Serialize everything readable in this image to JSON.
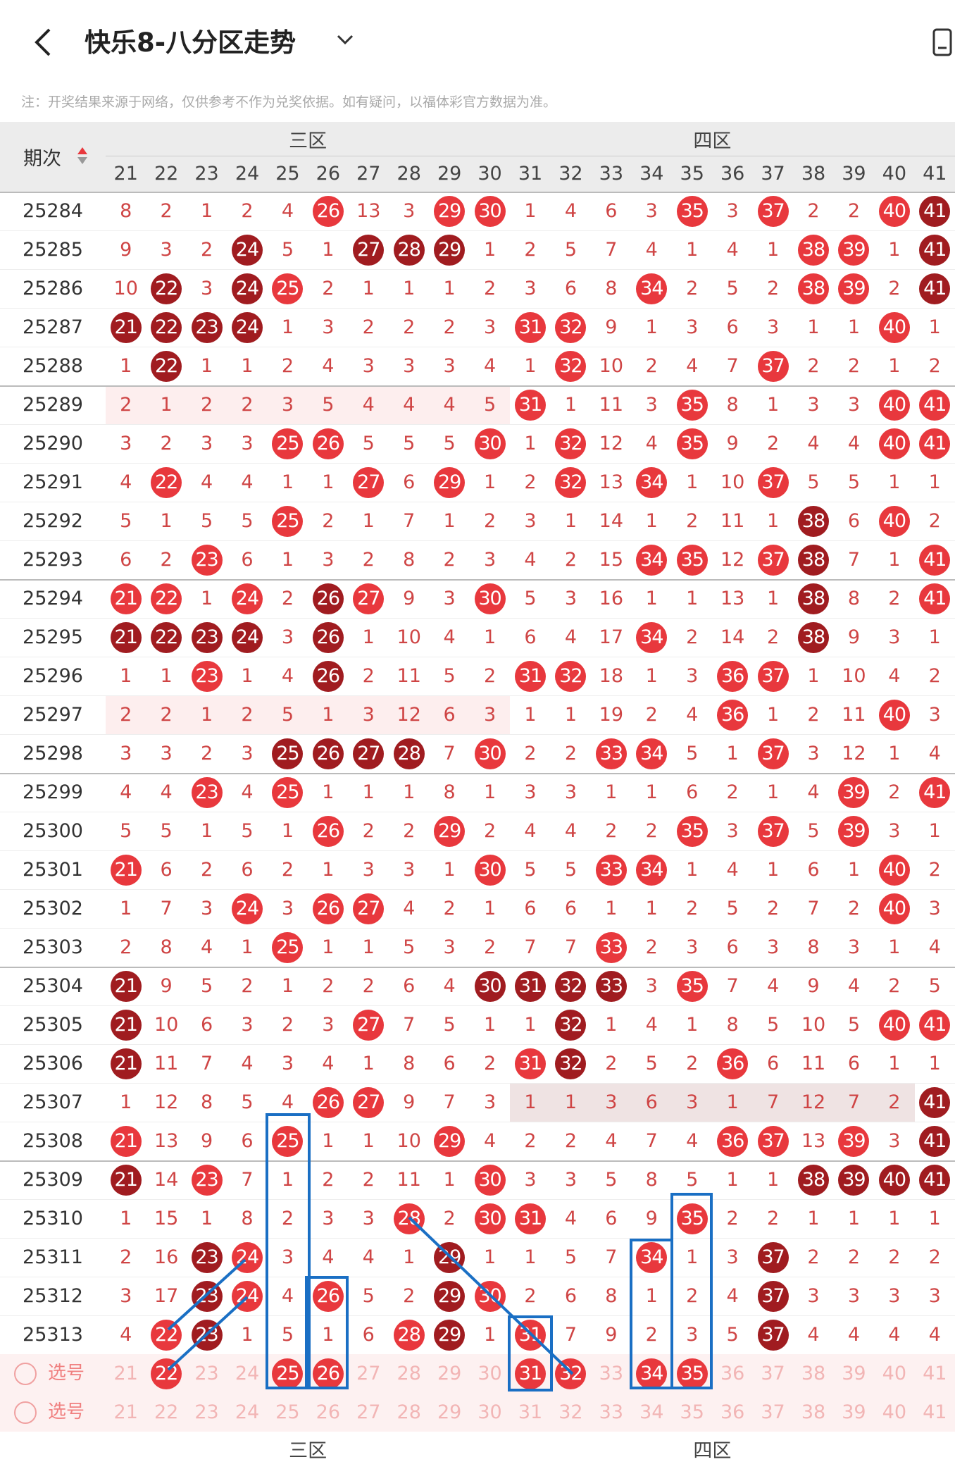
{
  "header": {
    "title": "快乐8-八分区走势",
    "note": "注：开奖结果来源于网络，仅供参考不作为兑奖依据。如有疑问，以福体彩官方数据为准。"
  },
  "table": {
    "period_header": "期次",
    "zones": [
      "三区",
      "四区"
    ],
    "columns": [
      21,
      22,
      23,
      24,
      25,
      26,
      27,
      28,
      29,
      30,
      31,
      32,
      33,
      34,
      35,
      36,
      37,
      38,
      39,
      40,
      41
    ],
    "rows": [
      {
        "period": "25284",
        "cells": [
          8,
          2,
          1,
          2,
          4,
          26,
          13,
          3,
          29,
          30,
          1,
          4,
          6,
          3,
          35,
          3,
          37,
          2,
          2,
          40,
          41
        ],
        "balls": ".....r..rr....r.r..rd"
      },
      {
        "period": "25285",
        "cells": [
          9,
          3,
          2,
          24,
          5,
          1,
          27,
          28,
          29,
          1,
          2,
          5,
          7,
          4,
          1,
          4,
          1,
          38,
          39,
          1,
          41
        ],
        "balls": "...d..ddd........rr.d"
      },
      {
        "period": "25286",
        "cells": [
          10,
          22,
          3,
          24,
          25,
          2,
          1,
          1,
          1,
          2,
          3,
          6,
          8,
          34,
          2,
          5,
          2,
          38,
          39,
          2,
          41
        ],
        "balls": ".d.dr........r...rr.d"
      },
      {
        "period": "25287",
        "cells": [
          21,
          22,
          23,
          24,
          1,
          3,
          2,
          2,
          2,
          3,
          31,
          32,
          9,
          1,
          3,
          6,
          3,
          1,
          1,
          40,
          1
        ],
        "balls": "dddd......rr.......r."
      },
      {
        "period": "25288",
        "cells": [
          1,
          22,
          1,
          1,
          2,
          4,
          3,
          3,
          3,
          4,
          1,
          32,
          10,
          2,
          4,
          7,
          37,
          2,
          2,
          1,
          2
        ],
        "balls": ".d.........r....r...."
      },
      {
        "period": "25289",
        "cells": [
          2,
          1,
          2,
          2,
          3,
          5,
          4,
          4,
          4,
          5,
          31,
          1,
          11,
          3,
          35,
          8,
          1,
          3,
          3,
          40,
          41
        ],
        "balls": "..........r...r....rr",
        "highlight": "left"
      },
      {
        "period": "25290",
        "cells": [
          3,
          2,
          3,
          3,
          25,
          26,
          5,
          5,
          5,
          30,
          1,
          32,
          12,
          4,
          35,
          9,
          2,
          4,
          4,
          40,
          41
        ],
        "balls": "....rr...r.r..r....rr"
      },
      {
        "period": "25291",
        "cells": [
          4,
          22,
          4,
          4,
          1,
          1,
          27,
          6,
          29,
          1,
          2,
          32,
          13,
          34,
          1,
          10,
          37,
          5,
          5,
          1,
          1
        ],
        "balls": ".r....r.r..r.r..r...."
      },
      {
        "period": "25292",
        "cells": [
          5,
          1,
          5,
          5,
          25,
          2,
          1,
          7,
          1,
          2,
          3,
          1,
          14,
          1,
          2,
          11,
          1,
          38,
          6,
          40,
          2
        ],
        "balls": "....r............d.r."
      },
      {
        "period": "25293",
        "cells": [
          6,
          2,
          23,
          6,
          1,
          3,
          2,
          8,
          2,
          3,
          4,
          2,
          15,
          34,
          35,
          12,
          37,
          38,
          7,
          1,
          41
        ],
        "balls": "..r..........rr.rd..r"
      },
      {
        "period": "25294",
        "cells": [
          21,
          22,
          1,
          24,
          2,
          26,
          27,
          9,
          3,
          30,
          5,
          3,
          16,
          1,
          1,
          13,
          1,
          38,
          8,
          2,
          41
        ],
        "balls": "rr.r.dr..r.......d..r"
      },
      {
        "period": "25295",
        "cells": [
          21,
          22,
          23,
          24,
          3,
          26,
          1,
          10,
          4,
          1,
          6,
          4,
          17,
          34,
          2,
          14,
          2,
          38,
          9,
          3,
          1
        ],
        "balls": "dddd.d.......r...d..."
      },
      {
        "period": "25296",
        "cells": [
          1,
          1,
          23,
          1,
          4,
          26,
          2,
          11,
          5,
          2,
          31,
          32,
          18,
          1,
          3,
          36,
          37,
          1,
          10,
          4,
          2
        ],
        "balls": "..r..d....rr...rr...."
      },
      {
        "period": "25297",
        "cells": [
          2,
          2,
          1,
          2,
          5,
          1,
          3,
          12,
          6,
          3,
          1,
          1,
          19,
          2,
          4,
          36,
          1,
          2,
          11,
          40,
          3
        ],
        "balls": "...............r...r.",
        "highlight": "left"
      },
      {
        "period": "25298",
        "cells": [
          3,
          3,
          2,
          3,
          25,
          26,
          27,
          28,
          7,
          30,
          2,
          2,
          33,
          34,
          5,
          1,
          37,
          3,
          12,
          1,
          4
        ],
        "balls": "....dddd.r..rr..r...."
      },
      {
        "period": "25299",
        "cells": [
          4,
          4,
          23,
          4,
          25,
          1,
          1,
          1,
          8,
          1,
          3,
          3,
          1,
          1,
          6,
          2,
          1,
          4,
          39,
          2,
          41
        ],
        "balls": "..r.r.............r.r"
      },
      {
        "period": "25300",
        "cells": [
          5,
          5,
          1,
          5,
          1,
          26,
          2,
          2,
          29,
          2,
          4,
          4,
          2,
          2,
          35,
          3,
          37,
          5,
          39,
          3,
          1
        ],
        "balls": ".....r..r.....r.r.r.."
      },
      {
        "period": "25301",
        "cells": [
          21,
          6,
          2,
          6,
          2,
          1,
          3,
          3,
          1,
          30,
          5,
          5,
          33,
          34,
          1,
          4,
          1,
          6,
          1,
          40,
          2
        ],
        "balls": "r........r..rr.....r."
      },
      {
        "period": "25302",
        "cells": [
          1,
          7,
          3,
          24,
          3,
          26,
          27,
          4,
          2,
          1,
          6,
          6,
          1,
          1,
          2,
          5,
          2,
          7,
          2,
          40,
          3
        ],
        "balls": "...r.rr............r."
      },
      {
        "period": "25303",
        "cells": [
          2,
          8,
          4,
          1,
          25,
          1,
          1,
          5,
          3,
          2,
          7,
          7,
          33,
          2,
          3,
          6,
          3,
          8,
          3,
          1,
          4
        ],
        "balls": "....r.......r........"
      },
      {
        "period": "25304",
        "cells": [
          21,
          9,
          5,
          2,
          1,
          2,
          2,
          6,
          4,
          30,
          31,
          32,
          33,
          3,
          35,
          7,
          4,
          9,
          4,
          2,
          5
        ],
        "balls": "d........dddd.r......"
      },
      {
        "period": "25305",
        "cells": [
          21,
          10,
          6,
          3,
          2,
          3,
          27,
          7,
          5,
          1,
          1,
          32,
          1,
          4,
          1,
          8,
          5,
          10,
          5,
          40,
          41
        ],
        "balls": "d.....r....d.......rr"
      },
      {
        "period": "25306",
        "cells": [
          21,
          11,
          7,
          4,
          3,
          4,
          1,
          8,
          6,
          2,
          31,
          32,
          2,
          5,
          2,
          36,
          6,
          11,
          6,
          1,
          1
        ],
        "balls": "d.........rd...r....."
      },
      {
        "period": "25307",
        "cells": [
          1,
          12,
          8,
          5,
          4,
          26,
          27,
          9,
          7,
          3,
          1,
          1,
          3,
          6,
          3,
          1,
          7,
          12,
          7,
          2,
          41
        ],
        "balls": ".....rr.............d",
        "highlight": "right"
      },
      {
        "period": "25308",
        "cells": [
          21,
          13,
          9,
          6,
          25,
          1,
          1,
          10,
          29,
          4,
          2,
          2,
          4,
          7,
          4,
          36,
          37,
          13,
          39,
          3,
          41
        ],
        "balls": "r...r...r......rr.r.d"
      },
      {
        "period": "25309",
        "cells": [
          21,
          14,
          23,
          7,
          1,
          2,
          2,
          11,
          1,
          30,
          3,
          3,
          5,
          8,
          5,
          1,
          1,
          38,
          39,
          40,
          41
        ],
        "balls": "d.r......r.......dddd"
      },
      {
        "period": "25310",
        "cells": [
          1,
          15,
          1,
          8,
          2,
          3,
          3,
          28,
          2,
          30,
          31,
          4,
          6,
          9,
          35,
          2,
          2,
          1,
          1,
          1,
          1
        ],
        "balls": ".......r.rr...r......"
      },
      {
        "period": "25311",
        "cells": [
          2,
          16,
          23,
          24,
          3,
          4,
          4,
          1,
          29,
          1,
          1,
          5,
          7,
          34,
          1,
          3,
          37,
          2,
          2,
          2,
          2
        ],
        "balls": "..dr....d....r..d...."
      },
      {
        "period": "25312",
        "cells": [
          3,
          17,
          23,
          24,
          4,
          26,
          5,
          2,
          29,
          30,
          2,
          6,
          8,
          1,
          2,
          4,
          37,
          3,
          3,
          3,
          3
        ],
        "balls": "..dr.r..dr......d...."
      },
      {
        "period": "25313",
        "cells": [
          4,
          22,
          23,
          1,
          5,
          1,
          6,
          28,
          29,
          1,
          31,
          7,
          9,
          2,
          3,
          5,
          37,
          4,
          4,
          4,
          4
        ],
        "balls": ".rd....rd.r.....d...."
      }
    ],
    "select_rows": [
      {
        "label": "选号",
        "numbers": [
          21,
          22,
          23,
          24,
          25,
          26,
          27,
          28,
          29,
          30,
          31,
          32,
          33,
          34,
          35,
          36,
          37,
          38,
          39,
          40,
          41
        ],
        "balls": ".r..rr....rr.rr......"
      },
      {
        "label": "选号",
        "numbers": [
          21,
          22,
          23,
          24,
          25,
          26,
          27,
          28,
          29,
          30,
          31,
          32,
          33,
          34,
          35,
          36,
          37,
          38,
          39,
          40,
          41
        ],
        "balls": "....................."
      }
    ]
  }
}
